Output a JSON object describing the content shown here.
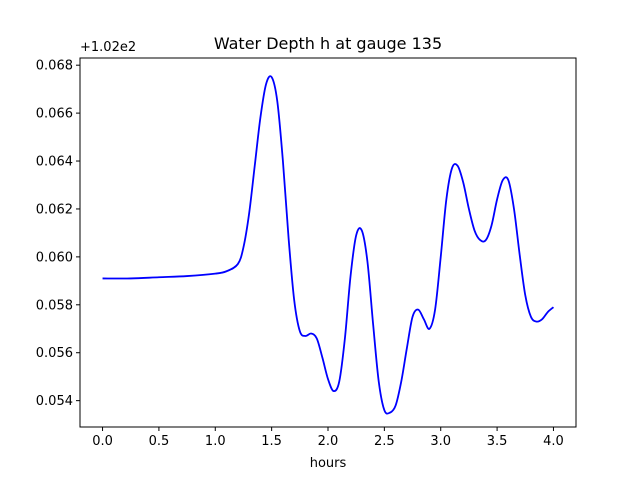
{
  "chart_data": {
    "type": "line",
    "title": "Water Depth h at gauge 135",
    "xlabel": "hours",
    "ylabel": "",
    "y_offset_label": "+1.02e2",
    "xlim": [
      -0.2,
      4.2
    ],
    "ylim": [
      0.0529,
      0.0683
    ],
    "x_ticks": [
      0.0,
      0.5,
      1.0,
      1.5,
      2.0,
      2.5,
      3.0,
      3.5,
      4.0
    ],
    "x_tick_labels": [
      "0.0",
      "0.5",
      "1.0",
      "1.5",
      "2.0",
      "2.5",
      "3.0",
      "3.5",
      "4.0"
    ],
    "y_ticks": [
      0.054,
      0.056,
      0.058,
      0.06,
      0.062,
      0.064,
      0.066,
      0.068
    ],
    "y_tick_labels": [
      "0.054",
      "0.056",
      "0.058",
      "0.060",
      "0.062",
      "0.064",
      "0.066",
      "0.068"
    ],
    "grid": false,
    "legend": "none",
    "series": [
      {
        "color": "#0000ff",
        "x": [
          0.0,
          0.25,
          0.5,
          0.75,
          1.0,
          1.1,
          1.2,
          1.25,
          1.3,
          1.35,
          1.4,
          1.45,
          1.5,
          1.55,
          1.6,
          1.65,
          1.7,
          1.75,
          1.8,
          1.85,
          1.9,
          1.95,
          2.0,
          2.05,
          2.1,
          2.15,
          2.2,
          2.25,
          2.3,
          2.35,
          2.4,
          2.45,
          2.5,
          2.55,
          2.6,
          2.65,
          2.7,
          2.75,
          2.8,
          2.85,
          2.9,
          2.95,
          3.0,
          3.05,
          3.1,
          3.15,
          3.2,
          3.25,
          3.3,
          3.35,
          3.4,
          3.45,
          3.5,
          3.55,
          3.6,
          3.65,
          3.7,
          3.75,
          3.8,
          3.85,
          3.9,
          3.95,
          4.0
        ],
        "y": [
          0.0591,
          0.0591,
          0.05915,
          0.0592,
          0.0593,
          0.0594,
          0.0597,
          0.0604,
          0.0618,
          0.0638,
          0.0658,
          0.0672,
          0.0675,
          0.0665,
          0.064,
          0.0608,
          0.0582,
          0.0569,
          0.0567,
          0.0568,
          0.0566,
          0.0558,
          0.0549,
          0.0544,
          0.0548,
          0.0566,
          0.0592,
          0.0609,
          0.0611,
          0.0598,
          0.0572,
          0.0548,
          0.0536,
          0.0535,
          0.0538,
          0.0548,
          0.0562,
          0.0575,
          0.0578,
          0.0574,
          0.057,
          0.0578,
          0.06,
          0.0624,
          0.0637,
          0.0638,
          0.0631,
          0.062,
          0.0611,
          0.0607,
          0.0607,
          0.0613,
          0.0624,
          0.0632,
          0.0632,
          0.062,
          0.0601,
          0.0584,
          0.0575,
          0.0573,
          0.0574,
          0.0577,
          0.0579
        ]
      }
    ]
  }
}
